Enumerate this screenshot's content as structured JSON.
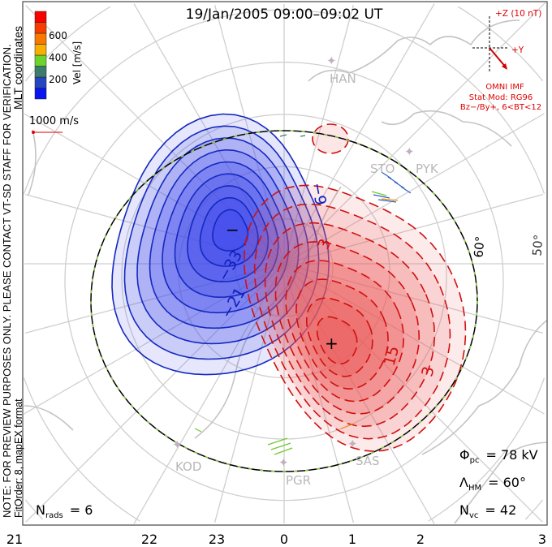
{
  "title": "19/Jan/2005 09:00–09:02 UT",
  "notes": {
    "line1": "NOTE: FOR PREVIEW PURPOSES ONLY. PLEASE CONTACT VT-SD STAFF FOR VERIFICATION.",
    "line2": "FitOrder: 8, mapEX format",
    "coords": "MLT coordinates"
  },
  "colorbar": {
    "label": "Vel [m/s]",
    "ticks": [
      "200",
      "400",
      "600"
    ],
    "colors": [
      "#0a14f0",
      "#2646c0",
      "#3c7c6c",
      "#6cd42c",
      "#f8b000",
      "#f87800",
      "#f83c00",
      "#f80000"
    ]
  },
  "scale_vector": {
    "label": "1000 m/s",
    "color": "#e00000"
  },
  "imf": {
    "z_label": "+Z (10 nT)",
    "y_label": "+Y",
    "source": "OMNI IMF",
    "model": "Stat Mod: RG96",
    "condition": "Bz−/By+, 6<BT<12",
    "color": "#e00000"
  },
  "stations": [
    "HAN",
    "STO",
    "PYK",
    "KOD",
    "PGR",
    "SAS"
  ],
  "latitude_labels": [
    "60°",
    "50°"
  ],
  "contour_labels": [
    "−9",
    "−33",
    "−21",
    "3",
    "15",
    "3"
  ],
  "extrema": {
    "min": "−",
    "max": "+"
  },
  "stats": {
    "phi_sym": "Φ",
    "phi_sub": "pc",
    "phi_val": "= 78 kV",
    "lambda_sym": "Λ",
    "lambda_sub": "HM",
    "lambda_val": "= 60°",
    "nvc_sym": "N",
    "nvc_sub": "vc",
    "nvc_val": "= 42",
    "nrads_sym": "N",
    "nrads_sub": "rads",
    "nrads_val": "= 6"
  },
  "mlt_labels": [
    "21",
    "22",
    "23",
    "0",
    "1",
    "2",
    "3"
  ],
  "colors": {
    "negative": "#1020c0",
    "positive": "#d01010",
    "grid": "#c8c8c8",
    "boundary_dash": "#90d040"
  }
}
